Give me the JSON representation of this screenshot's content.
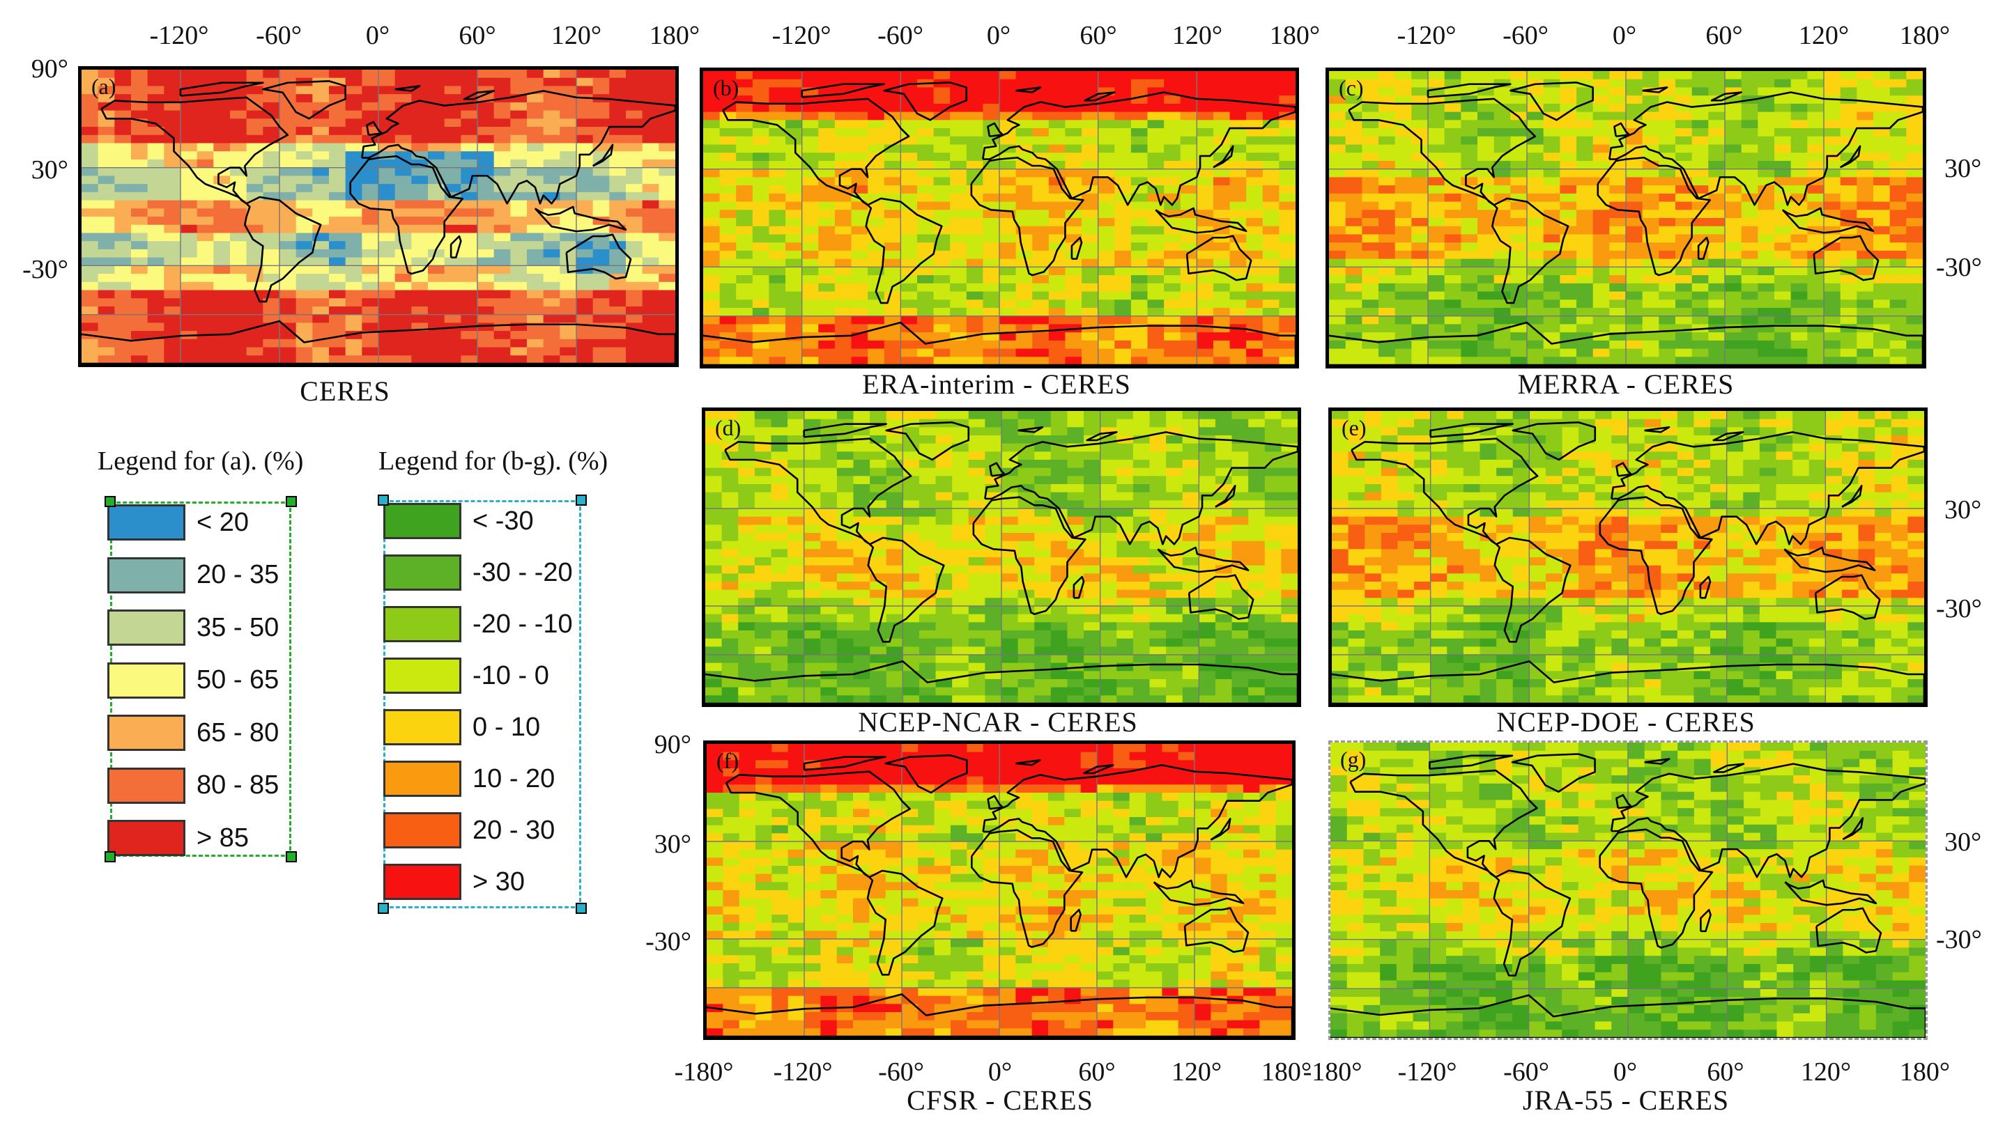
{
  "colors": {
    "ceres_palette": [
      "#2a8fcb",
      "#7fb1aa",
      "#c3d693",
      "#fbfa7f",
      "#fbad53",
      "#f36e38",
      "#e0251f"
    ],
    "diff_palette": [
      "#3fa31f",
      "#5cb126",
      "#8dcb18",
      "#cbe80f",
      "#fbd40f",
      "#fa9a0f",
      "#f95f13",
      "#f81111"
    ],
    "legend_a_frame": "#22b02b",
    "legend_b_frame": "#2ab0c8",
    "panel_g_frame": "#999999"
  },
  "top_ticks": {
    "a": [
      "-120°",
      "-60°",
      "0°",
      "60°",
      "120°",
      "180°"
    ],
    "b": [
      "-120°",
      "-60°",
      "0°",
      "60°",
      "120°",
      "180°"
    ],
    "c": [
      "-120°",
      "-60°",
      "0°",
      "60°",
      "120°",
      "180°"
    ]
  },
  "left_ticks": {
    "a": [
      "90°",
      "30°",
      "-30°"
    ],
    "f": [
      "90°",
      "30°",
      "-30°"
    ]
  },
  "right_ticks": {
    "c": [
      "30°",
      "-30°"
    ],
    "e": [
      "30°",
      "-30°"
    ],
    "g": [
      "30°",
      "-30°"
    ]
  },
  "bottom_ticks": {
    "f": [
      "-180°",
      "-120°",
      "-60°",
      "0°",
      "60°",
      "120°",
      "180°"
    ],
    "g": [
      "-180°",
      "-120°",
      "-60°",
      "0°",
      "60°",
      "120°",
      "180°"
    ]
  },
  "panels": {
    "a": {
      "label": "(a)",
      "caption": "CERES"
    },
    "b": {
      "label": "(b)",
      "caption": "ERA-interim - CERES"
    },
    "c": {
      "label": "(c)",
      "caption": "MERRA - CERES"
    },
    "d": {
      "label": "(d)",
      "caption": "NCEP-NCAR - CERES"
    },
    "e": {
      "label": "(e)",
      "caption": "NCEP-DOE - CERES"
    },
    "f": {
      "label": "(f)",
      "caption": "CFSR - CERES"
    },
    "g": {
      "label": "(g)",
      "caption": "JRA-55 - CERES"
    }
  },
  "legend_a": {
    "title": "Legend for (a). (%)",
    "items": [
      "< 20",
      "20 - 35",
      "35 - 50",
      "50 - 65",
      "65 - 80",
      "80 - 85",
      "> 85"
    ]
  },
  "legend_b": {
    "title": "Legend for (b-g). (%)",
    "items": [
      "< -30",
      "-30 - -20",
      "-20 - -10",
      "-10 - 0",
      "0 - 10",
      "10 - 20",
      "20 - 30",
      "> 30"
    ]
  }
}
